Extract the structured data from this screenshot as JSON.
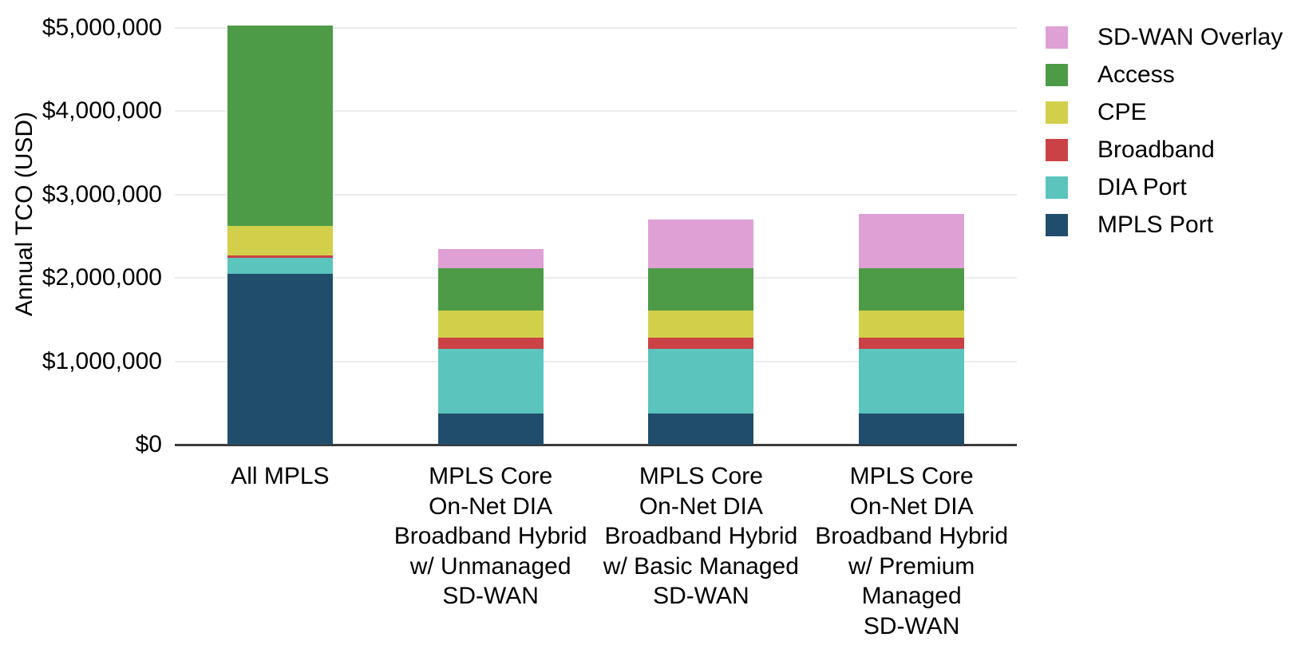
{
  "chart_data": {
    "type": "bar",
    "stacked": true,
    "title": "",
    "xlabel": "",
    "ylabel": "Annual TCO (USD)",
    "ylim": [
      0,
      5000000
    ],
    "grid": "horizontal-light-gridlines",
    "legend_position": "top-right",
    "background_color": "#FFFFFF",
    "axis_line_color": "#3A3A3A",
    "gridline_color": "#ECECEC",
    "text_color": "#000000",
    "yticks": [
      {
        "value": 0,
        "label": "$0"
      },
      {
        "value": 1000000,
        "label": "$1,000,000"
      },
      {
        "value": 2000000,
        "label": "$2,000,000"
      },
      {
        "value": 3000000,
        "label": "$3,000,000"
      },
      {
        "value": 4000000,
        "label": "$4,000,000"
      },
      {
        "value": 5000000,
        "label": "$5,000,000"
      }
    ],
    "categories": [
      {
        "label": "All MPLS",
        "lines": [
          "All MPLS"
        ]
      },
      {
        "label": "MPLS Core On-Net DIA Broadband Hybrid w/ Unmanaged SD-WAN",
        "lines": [
          "MPLS Core",
          "On-Net DIA",
          "Broadband Hybrid",
          "w/ Unmanaged",
          "SD-WAN"
        ]
      },
      {
        "label": "MPLS Core On-Net DIA Broadband Hybrid w/ Basic Managed SD-WAN",
        "lines": [
          "MPLS Core",
          "On-Net DIA",
          "Broadband Hybrid",
          "w/ Basic Managed",
          "SD-WAN"
        ]
      },
      {
        "label": "MPLS Core On-Net DIA Broadband Hybrid w/ Premium Managed SD-WAN",
        "lines": [
          "MPLS Core",
          "On-Net DIA",
          "Broadband Hybrid",
          "w/ Premium",
          "Managed",
          "SD-WAN"
        ]
      }
    ],
    "series": [
      {
        "name": "MPLS Port",
        "color": "#204D6C",
        "values": [
          2050000,
          370000,
          370000,
          370000
        ]
      },
      {
        "name": "DIA Port",
        "color": "#5AC4BD",
        "values": [
          190000,
          780000,
          780000,
          780000
        ]
      },
      {
        "name": "Broadband",
        "color": "#CA4245",
        "values": [
          30000,
          135000,
          135000,
          135000
        ]
      },
      {
        "name": "CPE",
        "color": "#D2D04A",
        "values": [
          355000,
          320000,
          320000,
          320000
        ]
      },
      {
        "name": "Access",
        "color": "#4D9B47",
        "values": [
          2400000,
          510000,
          510000,
          510000
        ]
      },
      {
        "name": "SD-WAN Overlay",
        "color": "#DFA0D6",
        "values": [
          0,
          230000,
          585000,
          655000
        ]
      }
    ],
    "bar_totals": [
      5025000,
      2345000,
      2700000,
      2770000
    ],
    "legend_order": [
      "SD-WAN Overlay",
      "Access",
      "CPE",
      "Broadband",
      "DIA Port",
      "MPLS Port"
    ]
  }
}
